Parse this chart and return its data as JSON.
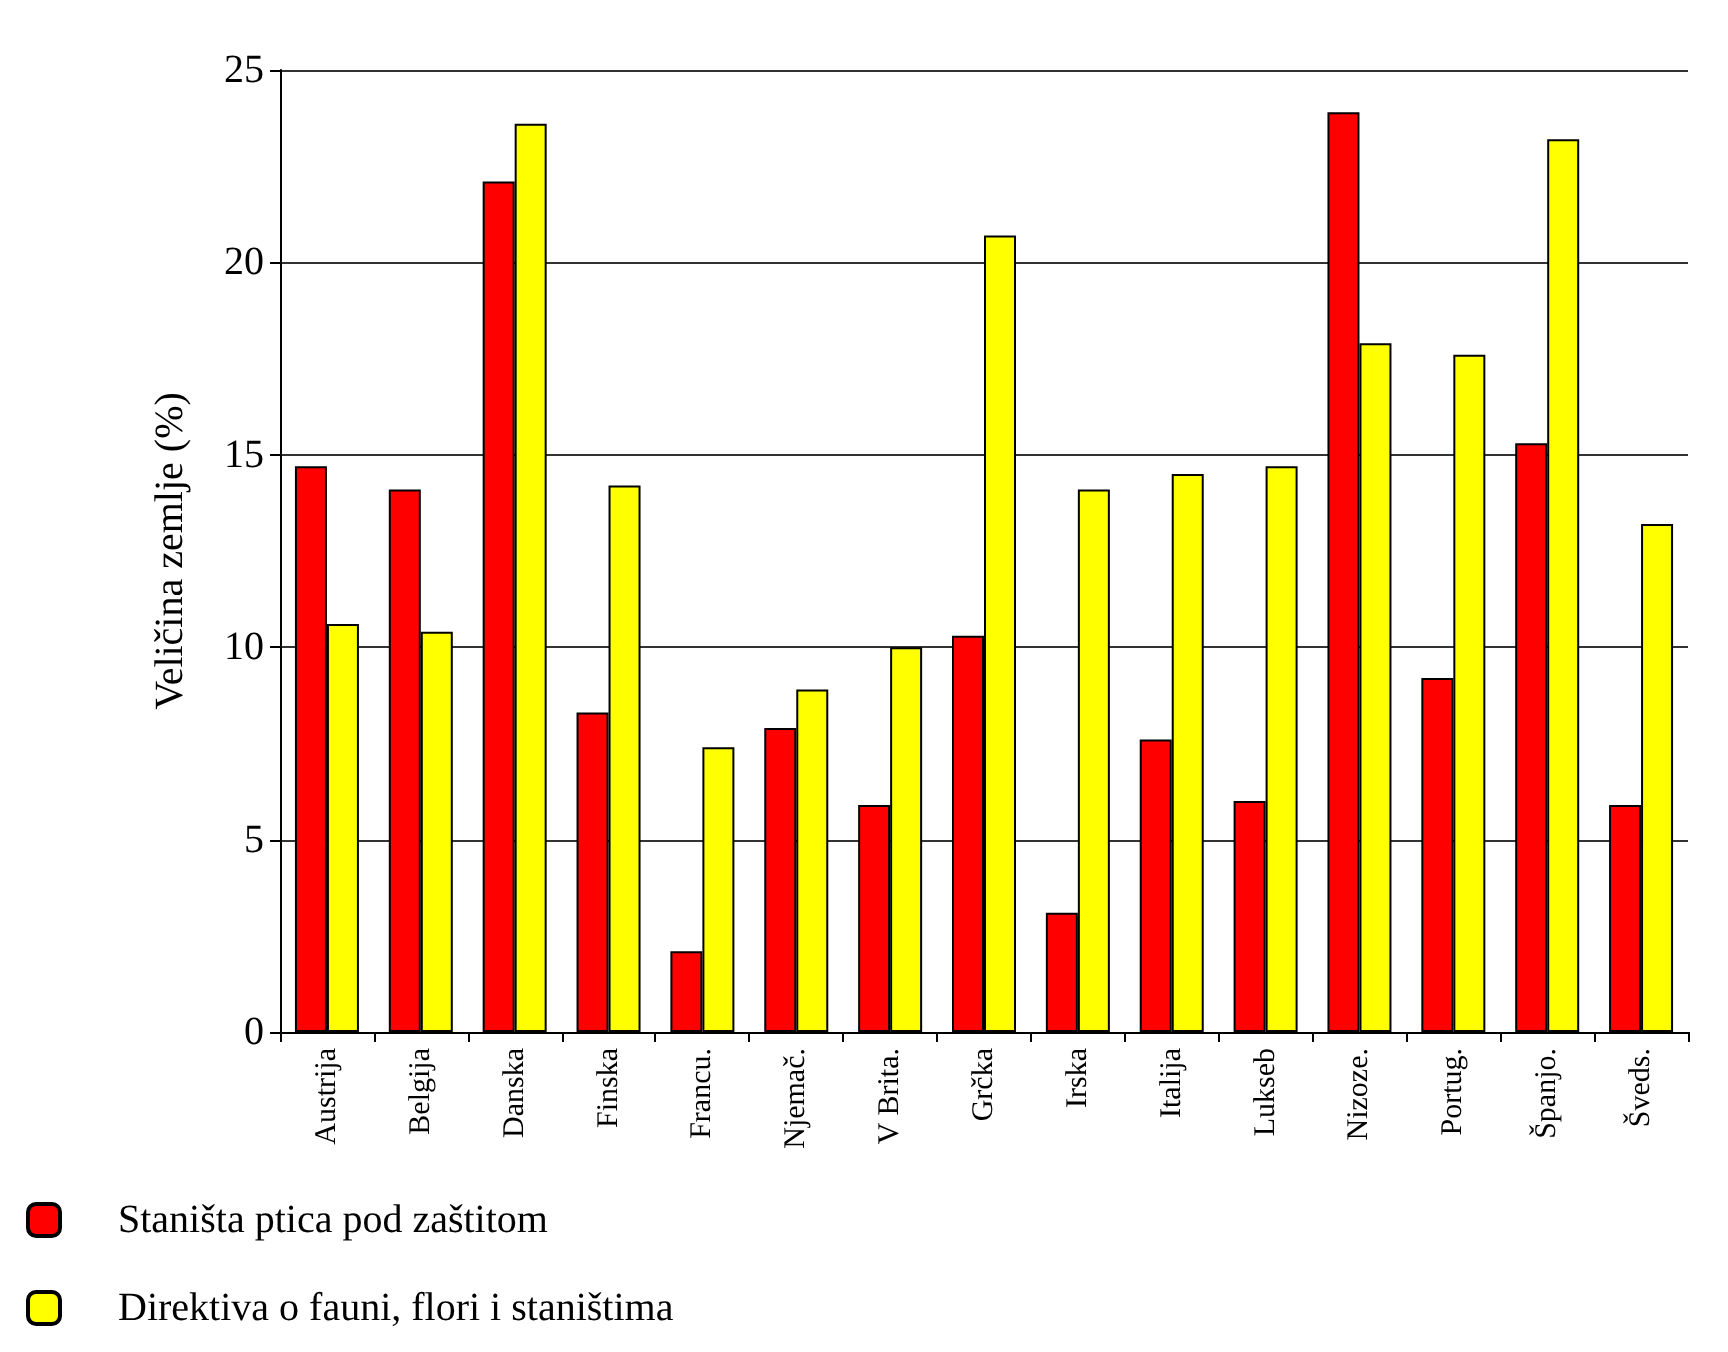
{
  "chart_data": {
    "type": "bar",
    "ylabel": "Veličina zemlje (%)",
    "categories": [
      "Austrija",
      "Belgija",
      "Danska",
      "Finska",
      "Francu.",
      "Njemač.",
      "V Brita.",
      "Grčka",
      "Irska",
      "Italija",
      "Lukseb",
      "Nizoze.",
      "Portug.",
      "Španjo.",
      "Šveds."
    ],
    "series": [
      {
        "name": "Staništa ptica pod zaštitom",
        "color": "#ff0000",
        "values": [
          14.7,
          14.1,
          22.1,
          8.3,
          2.1,
          7.9,
          5.9,
          10.3,
          3.1,
          7.6,
          6.0,
          23.9,
          9.2,
          15.3,
          5.9
        ]
      },
      {
        "name": "Direktiva o fauni, flori i staništima",
        "color": "#ffff00",
        "values": [
          10.6,
          10.4,
          23.6,
          14.2,
          7.4,
          8.9,
          10.0,
          20.7,
          14.1,
          14.5,
          14.7,
          17.9,
          17.6,
          23.2,
          13.2
        ]
      }
    ],
    "ylim": [
      0,
      25
    ],
    "yticks": [
      0,
      5,
      10,
      15,
      20,
      25
    ],
    "grid": "y",
    "legend": "bottom left"
  }
}
